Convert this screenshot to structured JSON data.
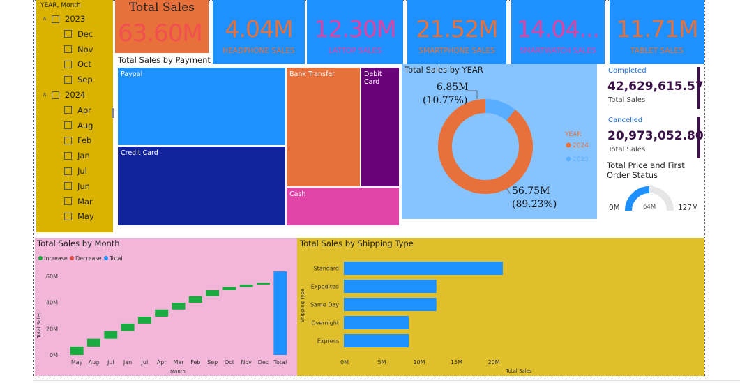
{
  "slicer": {
    "title": "YEAR, Month",
    "items": [
      {
        "label": "2023",
        "level": 0
      },
      {
        "label": "Dec",
        "level": 1
      },
      {
        "label": "Nov",
        "level": 1
      },
      {
        "label": "Oct",
        "level": 1
      },
      {
        "label": "Sep",
        "level": 1
      },
      {
        "label": "2024",
        "level": 0
      },
      {
        "label": "Apr",
        "level": 1
      },
      {
        "label": "Aug",
        "level": 1
      },
      {
        "label": "Feb",
        "level": 1
      },
      {
        "label": "Jan",
        "level": 1
      },
      {
        "label": "Jul",
        "level": 1
      },
      {
        "label": "Jun",
        "level": 1
      },
      {
        "label": "Mar",
        "level": 1
      },
      {
        "label": "May",
        "level": 1
      }
    ]
  },
  "kpis": {
    "total": {
      "title": "Total Sales",
      "value": "63.60M"
    },
    "cards": [
      {
        "value": "4.04M",
        "label": "HEADPHONE SALES",
        "color": "#e8703a"
      },
      {
        "value": "12.30M",
        "label": "LATTOP SALES",
        "color": "#e040a0"
      },
      {
        "value": "21.52M",
        "label": "SMARTPHONE SALES",
        "color": "#e8703a"
      },
      {
        "value": "14.04...",
        "label": "SMARTWATCH SALES",
        "color": "#e040a0"
      },
      {
        "value": "11.71M",
        "label": "TABLET SALES",
        "color": "#e8703a"
      }
    ]
  },
  "treemap": {
    "title": "Total Sales by Payment M",
    "tiles": [
      {
        "label": "Paypal",
        "color": "#1e90ff"
      },
      {
        "label": "Credit Card",
        "color": "#12239e"
      },
      {
        "label": "Bank Transfer",
        "color": "#e8703a"
      },
      {
        "label": "Debit Card",
        "color": "#6b007b"
      },
      {
        "label": "Cash",
        "color": "#e044a7"
      }
    ]
  },
  "donut": {
    "title": "Total Sales by YEAR",
    "legend_title": "YEAR",
    "label_2023_value": "6.85M",
    "label_2023_pct": "(10.77%)",
    "label_2024_value": "56.75M",
    "label_2024_pct": "(89.23%)"
  },
  "status": {
    "completed_label": "Completed",
    "completed_value": "42,629,615.57",
    "completed_sub": "Total Sales",
    "cancelled_label": "Cancelled",
    "cancelled_value": "20,973,052.80",
    "cancelled_sub": "Total Sales"
  },
  "gauge": {
    "title_line1": "Total Price and First",
    "title_line2": "Order Status",
    "min_label": "0M",
    "value_label": "64M",
    "max_label": "127M"
  },
  "month_chart": {
    "title": "Total Sales by Month",
    "legend": [
      "Increase",
      "Decrease",
      "Total"
    ],
    "xlabel": "Month",
    "ylabel": "Total Sales",
    "yticks": [
      "0M",
      "20M",
      "40M",
      "60M"
    ]
  },
  "ship_chart": {
    "title": "Total Sales by Shipping Type",
    "xlabel": "Total Sales",
    "ylabel": "Shipping Type",
    "xticks": [
      "0M",
      "5M",
      "10M",
      "15M",
      "20M"
    ]
  },
  "chart_data": [
    {
      "type": "pie",
      "title": "Total Sales by YEAR",
      "categories": [
        "2024",
        "2023"
      ],
      "values": [
        56.75,
        6.85
      ],
      "colors": [
        "#e8703a",
        "#5aaeff"
      ],
      "legend": "right"
    },
    {
      "type": "bar",
      "title": "Total Sales by Month",
      "categories": [
        "May",
        "Aug",
        "Jul",
        "Jan",
        "Jul",
        "Apr",
        "Mar",
        "Feb",
        "Sep",
        "Oct",
        "Nov",
        "Dec",
        "Total"
      ],
      "values": [
        6.4,
        6.0,
        5.9,
        5.6,
        5.3,
        5.4,
        5.1,
        5.0,
        4.7,
        2.3,
        1.9,
        1.4,
        63.6
      ],
      "colors": {
        "increase": "#1aab40",
        "decrease": "#e04a4a",
        "total": "#1e90ff"
      },
      "ylim": [
        0,
        70
      ],
      "xlabel": "Month",
      "ylabel": "Total Sales"
    },
    {
      "type": "bar",
      "orientation": "horizontal",
      "title": "Total Sales by Shipping Type",
      "categories": [
        "Standard",
        "Expedited",
        "Same Day",
        "Overnight",
        "Express"
      ],
      "values": [
        21.3,
        12.4,
        12.4,
        8.7,
        8.7
      ],
      "xlim": [
        0,
        22
      ],
      "xlabel": "Total Sales",
      "ylabel": "Shipping Type",
      "color": "#1e90ff"
    }
  ]
}
